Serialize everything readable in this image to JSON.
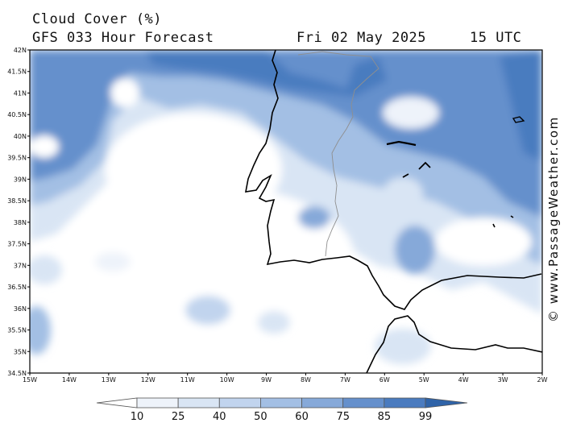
{
  "header": {
    "title": "Cloud Cover (%)",
    "subtitle": "GFS 033 Hour Forecast",
    "date": "Fri 02 May 2025",
    "time": "15 UTC"
  },
  "credit": "© www.PassageWeather.com",
  "map": {
    "region": "Iberian Peninsula / Portugal & Atlantic",
    "lon_range": [
      -15,
      -2
    ],
    "lat_range": [
      34.5,
      42
    ],
    "lat_ticks": [
      "42N",
      "41.5N",
      "41N",
      "40.5N",
      "40N",
      "39.5N",
      "39N",
      "38.5N",
      "38N",
      "37.5N",
      "37N",
      "36.5N",
      "36N",
      "35.5N",
      "35N",
      "34.5N"
    ],
    "lon_ticks": [
      "15W",
      "14W",
      "13W",
      "12W",
      "11W",
      "10W",
      "9W",
      "8W",
      "7W",
      "6W",
      "5W",
      "4W",
      "3W",
      "2W"
    ]
  },
  "legend": {
    "unit": "%",
    "levels": [
      "10",
      "25",
      "40",
      "50",
      "60",
      "75",
      "85",
      "99"
    ],
    "colors": [
      "#ffffff",
      "#eef3fa",
      "#d9e5f4",
      "#c1d4ee",
      "#a3bfe4",
      "#86a9d9",
      "#6590cc",
      "#4a7bbf",
      "#2f63a8"
    ]
  }
}
